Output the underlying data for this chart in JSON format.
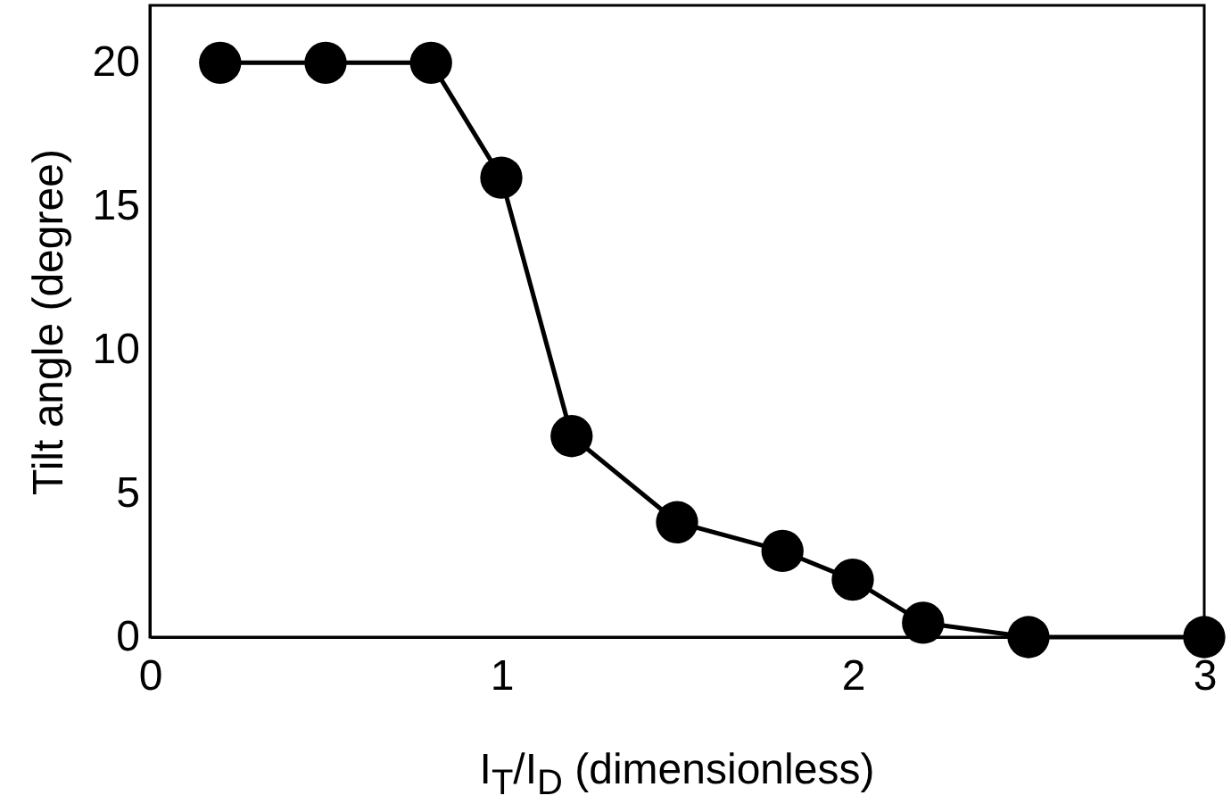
{
  "chart_data": {
    "type": "line",
    "xlabel": "I$_{T}$/I$_{D}$ (dimensionless)",
    "ylabel": "Tilt angle (degree)",
    "x": [
      0.2,
      0.5,
      0.8,
      1.0,
      1.2,
      1.5,
      1.8,
      2.0,
      2.2,
      2.5,
      3.0
    ],
    "series": [
      {
        "color": "#000000",
        "values": [
          20,
          20,
          20,
          16,
          7,
          4,
          3,
          2,
          0.5,
          0,
          0
        ]
      }
    ],
    "xlim": [
      0,
      3
    ],
    "xticks": [
      0,
      1,
      2,
      3
    ],
    "ylim": [
      0,
      22
    ],
    "yticks": [
      0,
      5,
      10,
      15,
      20
    ],
    "grid": false,
    "marker": "circle",
    "line_style": "solid"
  }
}
